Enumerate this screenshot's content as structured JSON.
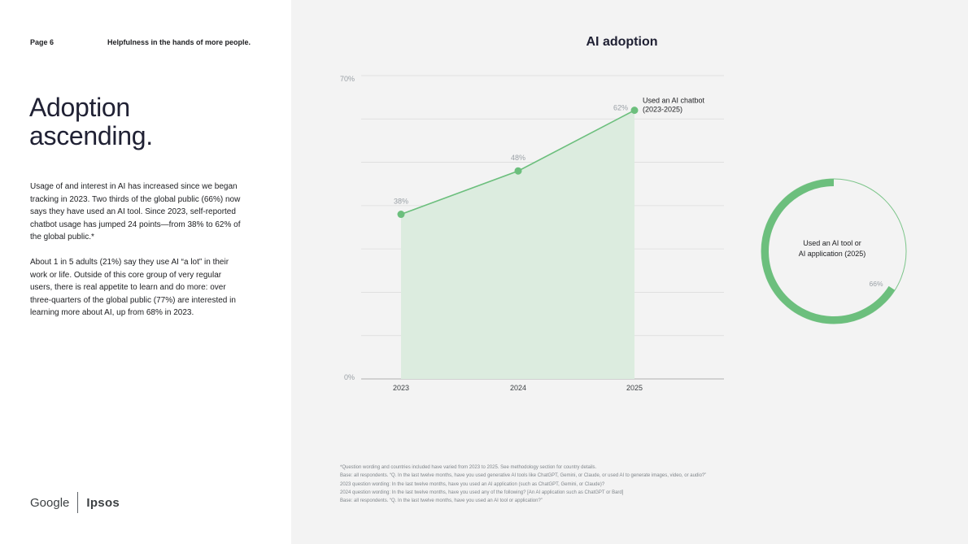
{
  "header": {
    "page_number": "Page 6",
    "running_title": "Helpfulness in the hands of more people."
  },
  "headline": {
    "line1": "Adoption",
    "line2": "ascending."
  },
  "body": {
    "paragraph1": "Usage of and interest in AI has increased since we began tracking in 2023. Two thirds of the global public (66%) now says they have used an AI tool. Since 2023, self-reported chatbot usage has jumped 24 points—from 38% to 62% of the global public.*",
    "paragraph2": "About 1 in 5 adults (21%) say they use AI “a lot” in their work or life. Outside of this core group of very regular users, there is real appetite to learn and do more: over three-quarters of the global public (77%) are interested in learning more about AI, up from 68% in 2023."
  },
  "logo": {
    "google": "Google",
    "ipsos": "Ipsos"
  },
  "chart_title": "AI adoption",
  "chart_data": [
    {
      "type": "area",
      "title": "AI adoption",
      "categories": [
        "2023",
        "2024",
        "2025"
      ],
      "series": [
        {
          "name": "Used an AI chatbot (2023-2025)",
          "label_line1": "Used an AI chatbot",
          "label_line2": "(2023-2025)",
          "values": [
            38,
            48,
            62
          ],
          "value_labels": [
            "38%",
            "48%",
            "62%"
          ]
        }
      ],
      "ylim": [
        0,
        70
      ],
      "y_tick_labels": [
        "0%",
        "70%"
      ],
      "grid": true,
      "xlabel": "",
      "ylabel": ""
    },
    {
      "type": "pie",
      "label_line1": "Used an AI tool or",
      "label_line2": "AI application (2025)",
      "value": 66,
      "value_label": "66%"
    }
  ],
  "colors": {
    "accent": "#6cbf7d",
    "area_fill": "#dcecdf",
    "ring_track": "#7cc58a",
    "grid": "#dcdcdc",
    "axis": "#bdbdbd"
  },
  "footnotes": [
    "*Question wording and countries included have varied from 2023 to 2025. See methodology section for country details.",
    "Base: all respondents. “Q. In the last twelve months, have you used generative AI tools like ChatGPT, Gemini, or Claude, or used AI to generate images, video, or audio?”",
    "2023 question wording: In the last twelve months, have you used an AI application (such as ChatGPT, Gemini, or Claude)?",
    "2024 question wording: In the last twelve months, have you used any of the following? [An AI application such as ChatGPT or Bard]",
    "Base: all respondents. “Q. In the last twelve months, have you used an AI tool or application?”"
  ]
}
